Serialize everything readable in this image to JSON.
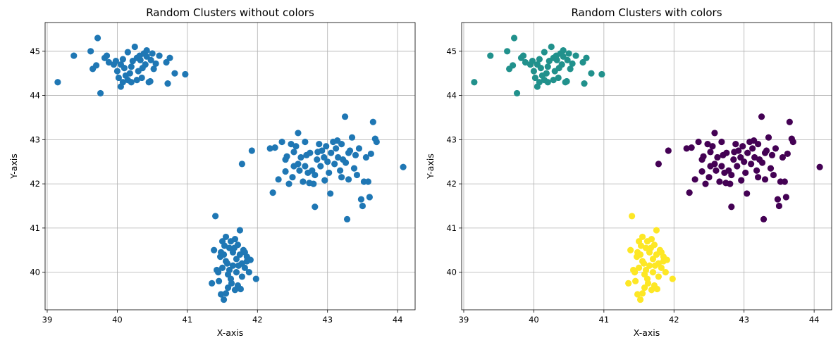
{
  "chart_data": [
    {
      "type": "scatter",
      "title": "Random Clusters without colors",
      "xlabel": "X-axis",
      "ylabel": "Y-axis",
      "xlim": [
        38.97,
        44.25
      ],
      "ylim": [
        39.15,
        45.65
      ],
      "xticks": [
        39,
        40,
        41,
        42,
        43,
        44
      ],
      "yticks": [
        40,
        41,
        42,
        43,
        44,
        45
      ],
      "grid": true,
      "colors": {
        "0": "#1f77b4",
        "1": "#1f77b4",
        "2": "#1f77b4"
      },
      "points": [
        [
          39.15,
          44.3,
          1
        ],
        [
          39.38,
          44.9,
          1
        ],
        [
          39.62,
          45.0,
          1
        ],
        [
          39.72,
          45.3,
          1
        ],
        [
          39.65,
          44.6,
          1
        ],
        [
          39.7,
          44.68,
          1
        ],
        [
          39.76,
          44.05,
          1
        ],
        [
          39.82,
          44.85,
          1
        ],
        [
          39.85,
          44.9,
          1
        ],
        [
          39.88,
          44.75,
          1
        ],
        [
          39.95,
          44.7,
          1
        ],
        [
          39.98,
          44.78,
          1
        ],
        [
          40.0,
          44.55,
          1
        ],
        [
          40.02,
          44.4,
          1
        ],
        [
          40.05,
          44.2,
          1
        ],
        [
          40.05,
          44.7,
          1
        ],
        [
          40.08,
          44.3,
          1
        ],
        [
          40.1,
          44.62,
          1
        ],
        [
          40.12,
          44.45,
          1
        ],
        [
          40.15,
          44.98,
          1
        ],
        [
          40.15,
          44.35,
          1
        ],
        [
          40.18,
          44.5,
          1
        ],
        [
          40.2,
          44.3,
          1
        ],
        [
          40.22,
          44.78,
          1
        ],
        [
          40.25,
          45.1,
          1
        ],
        [
          40.28,
          44.85,
          1
        ],
        [
          40.3,
          44.55,
          1
        ],
        [
          40.32,
          44.9,
          1
        ],
        [
          40.35,
          44.4,
          1
        ],
        [
          40.38,
          44.95,
          1
        ],
        [
          40.4,
          44.7,
          1
        ],
        [
          40.42,
          45.02,
          1
        ],
        [
          40.45,
          44.3,
          1
        ],
        [
          40.48,
          44.8,
          1
        ],
        [
          40.5,
          44.95,
          1
        ],
        [
          40.52,
          44.6,
          1
        ],
        [
          40.2,
          44.65,
          1
        ],
        [
          40.28,
          44.35,
          1
        ],
        [
          40.33,
          44.8,
          1
        ],
        [
          40.36,
          44.62,
          1
        ],
        [
          40.42,
          44.88,
          1
        ],
        [
          40.47,
          44.32,
          1
        ],
        [
          40.55,
          44.72,
          1
        ],
        [
          40.7,
          44.75,
          1
        ],
        [
          40.72,
          44.27,
          1
        ],
        [
          40.75,
          44.85,
          1
        ],
        [
          40.82,
          44.5,
          1
        ],
        [
          40.97,
          44.48,
          1
        ],
        [
          40.6,
          44.9,
          1
        ],
        [
          40.08,
          44.82,
          1
        ],
        [
          41.38,
          40.5,
          2
        ],
        [
          41.4,
          41.27,
          2
        ],
        [
          41.44,
          40.0,
          2
        ],
        [
          41.45,
          39.8,
          2
        ],
        [
          41.48,
          39.5,
          2
        ],
        [
          41.5,
          40.7,
          2
        ],
        [
          41.5,
          40.1,
          2
        ],
        [
          41.52,
          40.4,
          2
        ],
        [
          41.52,
          39.38,
          2
        ],
        [
          41.55,
          40.8,
          2
        ],
        [
          41.55,
          40.25,
          2
        ],
        [
          41.58,
          39.95,
          2
        ],
        [
          41.58,
          39.65,
          2
        ],
        [
          41.6,
          40.55,
          2
        ],
        [
          41.6,
          40.05,
          2
        ],
        [
          41.62,
          40.7,
          2
        ],
        [
          41.62,
          39.85,
          2
        ],
        [
          41.65,
          40.45,
          2
        ],
        [
          41.65,
          40.15,
          2
        ],
        [
          41.68,
          40.75,
          2
        ],
        [
          41.68,
          39.6,
          2
        ],
        [
          41.7,
          40.3,
          2
        ],
        [
          41.7,
          40.0,
          2
        ],
        [
          41.72,
          40.62,
          2
        ],
        [
          41.72,
          39.7,
          2
        ],
        [
          41.75,
          40.95,
          2
        ],
        [
          41.75,
          40.4,
          2
        ],
        [
          41.78,
          40.2,
          2
        ],
        [
          41.78,
          39.9,
          2
        ],
        [
          41.8,
          40.5,
          2
        ],
        [
          41.82,
          40.1,
          2
        ],
        [
          41.85,
          40.35,
          2
        ],
        [
          41.88,
          40.0,
          2
        ],
        [
          41.9,
          40.28,
          2
        ],
        [
          41.98,
          39.85,
          2
        ],
        [
          41.35,
          39.75,
          2
        ],
        [
          41.42,
          40.05,
          2
        ],
        [
          41.47,
          40.35,
          2
        ],
        [
          41.53,
          40.6,
          2
        ],
        [
          41.57,
          40.2,
          2
        ],
        [
          41.63,
          39.75,
          2
        ],
        [
          41.67,
          40.55,
          2
        ],
        [
          41.73,
          40.15,
          2
        ],
        [
          41.76,
          39.62,
          2
        ],
        [
          41.82,
          40.45,
          2
        ],
        [
          41.85,
          40.25,
          2
        ],
        [
          41.55,
          39.52,
          2
        ],
        [
          41.48,
          40.45,
          2
        ],
        [
          41.78,
          42.45,
          0
        ],
        [
          41.92,
          42.75,
          0
        ],
        [
          42.18,
          42.8,
          0
        ],
        [
          42.25,
          42.82,
          0
        ],
        [
          42.22,
          41.8,
          0
        ],
        [
          42.35,
          42.95,
          0
        ],
        [
          42.4,
          42.55,
          0
        ],
        [
          42.45,
          42.0,
          0
        ],
        [
          42.48,
          42.9,
          0
        ],
        [
          42.5,
          42.15,
          0
        ],
        [
          42.52,
          42.4,
          0
        ],
        [
          42.55,
          42.85,
          0
        ],
        [
          42.58,
          43.15,
          0
        ],
        [
          42.6,
          42.3,
          0
        ],
        [
          42.62,
          42.6,
          0
        ],
        [
          42.65,
          42.05,
          0
        ],
        [
          42.68,
          42.95,
          0
        ],
        [
          42.7,
          42.65,
          0
        ],
        [
          42.72,
          42.25,
          0
        ],
        [
          42.75,
          42.7,
          0
        ],
        [
          42.78,
          42.3,
          0
        ],
        [
          42.8,
          42.0,
          0
        ],
        [
          42.82,
          41.48,
          0
        ],
        [
          42.82,
          42.2,
          0
        ],
        [
          42.85,
          42.55,
          0
        ],
        [
          42.88,
          42.9,
          0
        ],
        [
          42.9,
          42.4,
          0
        ],
        [
          42.92,
          42.75,
          0
        ],
        [
          42.95,
          42.6,
          0
        ],
        [
          42.98,
          42.85,
          0
        ],
        [
          43.0,
          42.5,
          0
        ],
        [
          43.02,
          42.25,
          0
        ],
        [
          43.05,
          42.7,
          0
        ],
        [
          43.08,
          42.95,
          0
        ],
        [
          43.1,
          42.45,
          0
        ],
        [
          43.12,
          42.8,
          0
        ],
        [
          43.15,
          42.6,
          0
        ],
        [
          43.18,
          42.3,
          0
        ],
        [
          43.2,
          42.9,
          0
        ],
        [
          43.22,
          42.55,
          0
        ],
        [
          43.25,
          43.52,
          0
        ],
        [
          43.28,
          41.2,
          0
        ],
        [
          43.3,
          42.1,
          0
        ],
        [
          43.32,
          42.75,
          0
        ],
        [
          43.35,
          43.05,
          0
        ],
        [
          43.38,
          42.35,
          0
        ],
        [
          43.42,
          42.2,
          0
        ],
        [
          43.45,
          42.8,
          0
        ],
        [
          43.48,
          41.65,
          0
        ],
        [
          43.5,
          41.5,
          0
        ],
        [
          43.52,
          42.05,
          0
        ],
        [
          43.55,
          42.6,
          0
        ],
        [
          43.6,
          41.7,
          0
        ],
        [
          43.65,
          43.4,
          0
        ],
        [
          43.68,
          43.02,
          0
        ],
        [
          43.7,
          42.95,
          0
        ],
        [
          44.08,
          42.38,
          0
        ],
        [
          42.3,
          42.1,
          0
        ],
        [
          42.42,
          42.62,
          0
        ],
        [
          42.58,
          42.45,
          0
        ],
        [
          42.74,
          42.02,
          0
        ],
        [
          42.86,
          42.72,
          0
        ],
        [
          43.04,
          41.78,
          0
        ],
        [
          43.14,
          42.98,
          0
        ],
        [
          43.26,
          42.48,
          0
        ],
        [
          43.4,
          42.65,
          0
        ],
        [
          43.58,
          42.05,
          0
        ],
        [
          43.62,
          42.68,
          0
        ],
        [
          42.52,
          42.72,
          0
        ],
        [
          42.96,
          42.08,
          0
        ],
        [
          43.2,
          42.15,
          0
        ],
        [
          42.68,
          42.4,
          0
        ],
        [
          43.3,
          42.7,
          0
        ],
        [
          42.4,
          42.28,
          0
        ]
      ]
    },
    {
      "type": "scatter",
      "title": "Random Clusters with colors",
      "xlabel": "X-axis",
      "ylabel": "Y-axis",
      "xlim": [
        38.97,
        44.25
      ],
      "ylim": [
        39.15,
        45.65
      ],
      "xticks": [
        39,
        40,
        41,
        42,
        43,
        44
      ],
      "yticks": [
        40,
        41,
        42,
        43,
        44,
        45
      ],
      "grid": true,
      "colors": {
        "0": "#440154",
        "1": "#21918c",
        "2": "#fde725"
      },
      "points": "same"
    }
  ]
}
